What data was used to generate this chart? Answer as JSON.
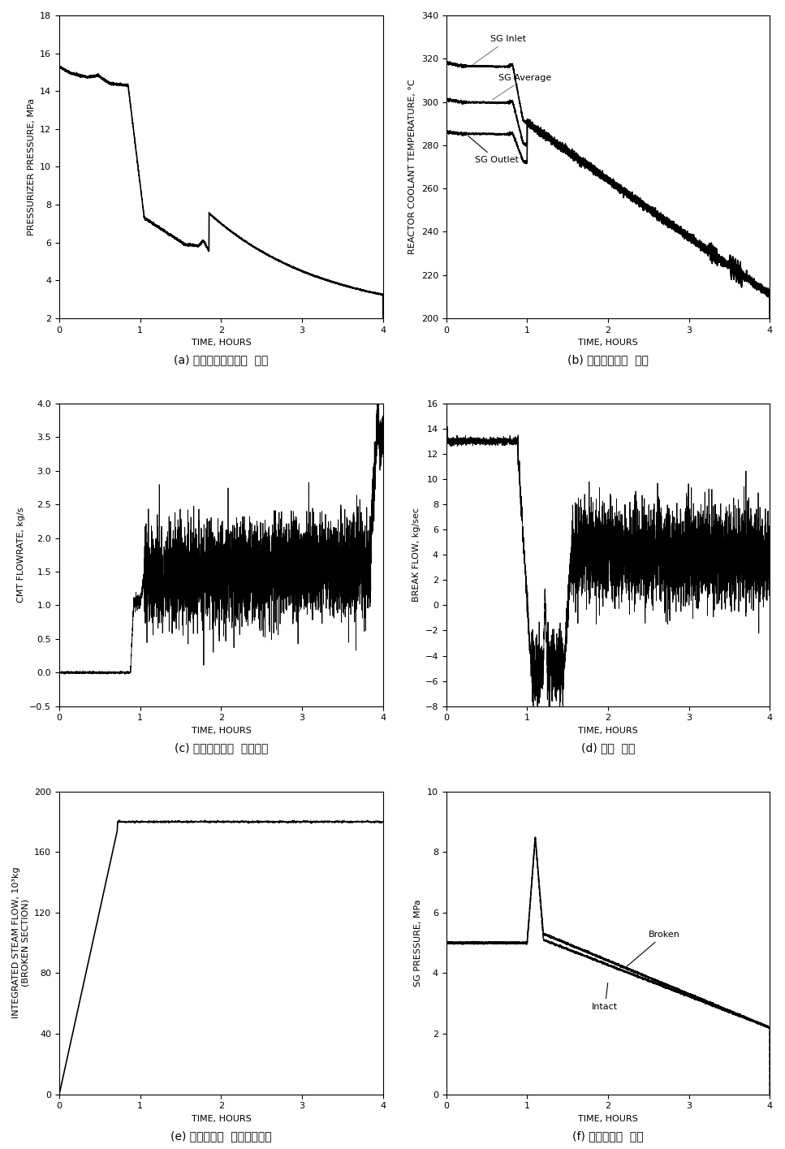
{
  "fig_labels": [
    "(a) 원자로냉각제계통  압력",
    "(b) 원자로냉각재  온도",
    "(c) 노심보충탱크  주입유량",
    "(d) 파열  유량",
    "(e) 파열구역관  누적증기유량",
    "(f) 주증기계통  압력"
  ],
  "subplot_a": {
    "ylabel": "PRESSURIZER PRESSURE, MPa",
    "xlabel": "TIME, HOURS",
    "xlim": [
      0,
      4
    ],
    "ylim": [
      2,
      18
    ],
    "yticks": [
      2,
      4,
      6,
      8,
      10,
      12,
      14,
      16,
      18
    ],
    "xticks": [
      0,
      1,
      2,
      3,
      4
    ]
  },
  "subplot_b": {
    "ylabel": "REACTOR COOLANT TEMPERATURE, °C",
    "xlabel": "TIME, HOURS",
    "xlim": [
      0,
      4
    ],
    "ylim": [
      200,
      340
    ],
    "yticks": [
      200,
      220,
      240,
      260,
      280,
      300,
      320,
      340
    ],
    "xticks": [
      0,
      1,
      2,
      3,
      4
    ]
  },
  "subplot_c": {
    "ylabel": "CMT FLOWRATE, kg/s",
    "xlabel": "TIME, HOURS",
    "xlim": [
      0,
      4
    ],
    "ylim": [
      -0.5,
      4.0
    ],
    "yticks": [
      -0.5,
      0.0,
      0.5,
      1.0,
      1.5,
      2.0,
      2.5,
      3.0,
      3.5,
      4.0
    ],
    "xticks": [
      0,
      1,
      2,
      3,
      4
    ]
  },
  "subplot_d": {
    "ylabel": "BREAK FLOW, kg/sec",
    "xlabel": "TIME, HOURS",
    "xlim": [
      0,
      4
    ],
    "ylim": [
      -8,
      16
    ],
    "yticks": [
      -8,
      -6,
      -4,
      -2,
      0,
      2,
      4,
      6,
      8,
      10,
      12,
      14,
      16
    ],
    "xticks": [
      0,
      1,
      2,
      3,
      4
    ]
  },
  "subplot_e": {
    "ylabel": "INTEGRATED STEAM FLOW, 10³kg\n(BROKEN SECTION)",
    "xlabel": "TIME, HOURS",
    "xlim": [
      0,
      4
    ],
    "ylim": [
      0,
      200
    ],
    "yticks": [
      0,
      40,
      80,
      120,
      160,
      200
    ],
    "xticks": [
      0,
      1,
      2,
      3,
      4
    ]
  },
  "subplot_f": {
    "ylabel": "SG PRESSURE, MPa",
    "xlabel": "TIME, HOURS",
    "xlim": [
      0,
      4
    ],
    "ylim": [
      0,
      10
    ],
    "yticks": [
      0,
      2,
      4,
      6,
      8,
      10
    ],
    "xticks": [
      0,
      1,
      2,
      3,
      4
    ]
  },
  "line_color": "#000000",
  "bg_color": "#ffffff",
  "label_fontsize": 8,
  "tick_fontsize": 8,
  "caption_fontsize": 10
}
